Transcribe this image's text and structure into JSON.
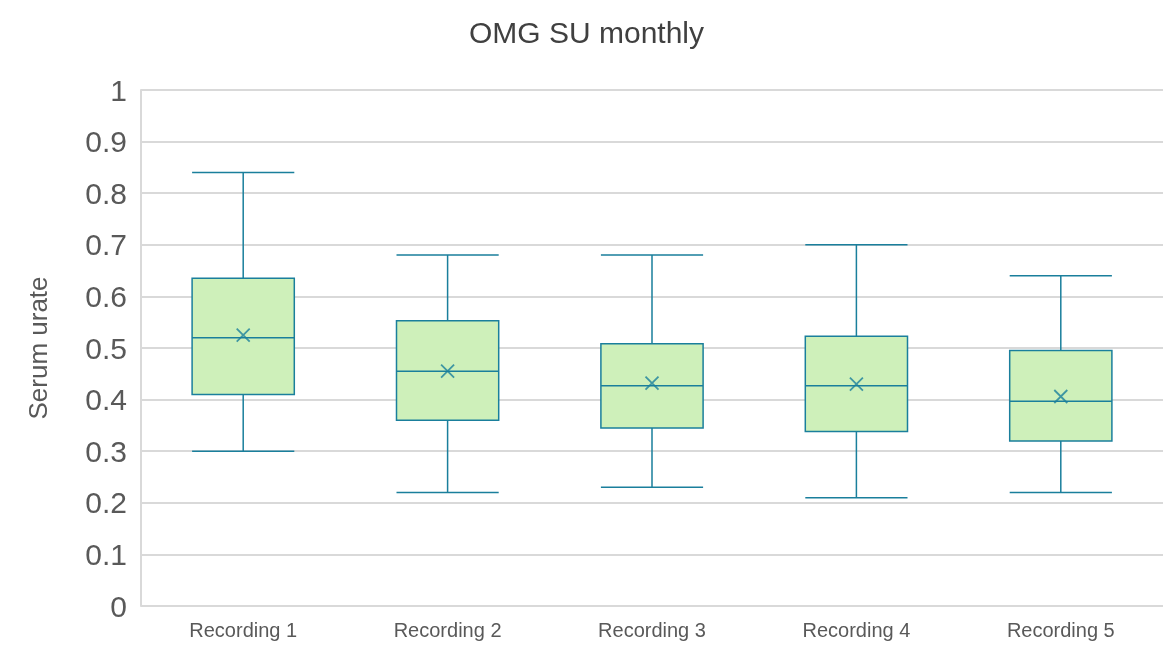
{
  "chart_data": {
    "type": "box",
    "title": "OMG SU monthly",
    "ylabel": "Serum urate",
    "categories": [
      "Recording 1",
      "Recording 2",
      "Recording 3",
      "Recording 4",
      "Recording 5"
    ],
    "series": [
      {
        "color": "#1a7f9c",
        "boxes": [
          {
            "low": 0.3,
            "q1": 0.41,
            "median": 0.52,
            "q3": 0.635,
            "high": 0.84,
            "mean": 0.525
          },
          {
            "low": 0.22,
            "q1": 0.36,
            "median": 0.455,
            "q3": 0.553,
            "high": 0.68,
            "mean": 0.455
          },
          {
            "low": 0.23,
            "q1": 0.345,
            "median": 0.427,
            "q3": 0.508,
            "high": 0.68,
            "mean": 0.432
          },
          {
            "low": 0.21,
            "q1": 0.338,
            "median": 0.427,
            "q3": 0.523,
            "high": 0.7,
            "mean": 0.43
          },
          {
            "low": 0.22,
            "q1": 0.32,
            "median": 0.397,
            "q3": 0.495,
            "high": 0.64,
            "mean": 0.406
          }
        ]
      }
    ],
    "ylim": [
      0,
      1
    ],
    "yticks": [
      0,
      0.1,
      0.2,
      0.3,
      0.4,
      0.5,
      0.6,
      0.7,
      0.8,
      0.9,
      1
    ],
    "grid": "y",
    "marker": "cross"
  }
}
